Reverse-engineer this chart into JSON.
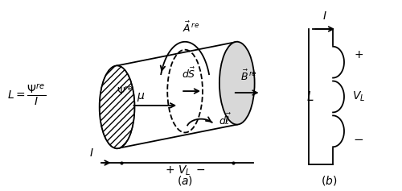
{
  "fig_width": 5.0,
  "fig_height": 2.37,
  "dpi": 100,
  "bg_color": "#ffffff"
}
